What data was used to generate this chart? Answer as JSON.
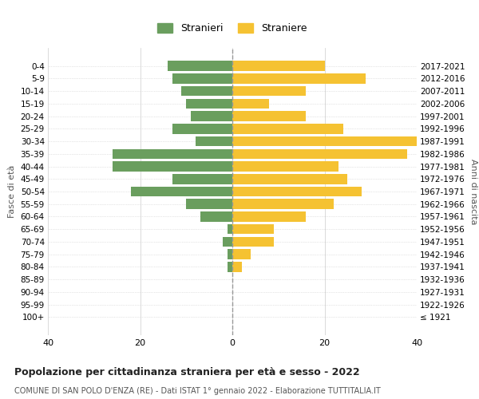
{
  "age_groups": [
    "100+",
    "95-99",
    "90-94",
    "85-89",
    "80-84",
    "75-79",
    "70-74",
    "65-69",
    "60-64",
    "55-59",
    "50-54",
    "45-49",
    "40-44",
    "35-39",
    "30-34",
    "25-29",
    "20-24",
    "15-19",
    "10-14",
    "5-9",
    "0-4"
  ],
  "birth_years": [
    "≤ 1921",
    "1922-1926",
    "1927-1931",
    "1932-1936",
    "1937-1941",
    "1942-1946",
    "1947-1951",
    "1952-1956",
    "1957-1961",
    "1962-1966",
    "1967-1971",
    "1972-1976",
    "1977-1981",
    "1982-1986",
    "1987-1991",
    "1992-1996",
    "1997-2001",
    "2002-2006",
    "2007-2011",
    "2012-2016",
    "2017-2021"
  ],
  "males": [
    0,
    0,
    0,
    0,
    1,
    1,
    2,
    1,
    7,
    10,
    22,
    13,
    26,
    26,
    8,
    13,
    9,
    10,
    11,
    13,
    14
  ],
  "females": [
    0,
    0,
    0,
    0,
    2,
    4,
    9,
    9,
    16,
    22,
    28,
    25,
    23,
    38,
    40,
    24,
    16,
    8,
    16,
    29,
    20
  ],
  "male_color": "#6a9e5e",
  "female_color": "#f5c232",
  "background_color": "#ffffff",
  "grid_color": "#cccccc",
  "title": "Popolazione per cittadinanza straniera per età e sesso - 2022",
  "subtitle": "COMUNE DI SAN POLO D'ENZA (RE) - Dati ISTAT 1° gennaio 2022 - Elaborazione TUTTITALIA.IT",
  "ylabel_left": "Fasce di età",
  "ylabel_right": "Anni di nascita",
  "legend_male": "Stranieri",
  "legend_female": "Straniere",
  "xlim": 40,
  "bar_height": 0.8
}
